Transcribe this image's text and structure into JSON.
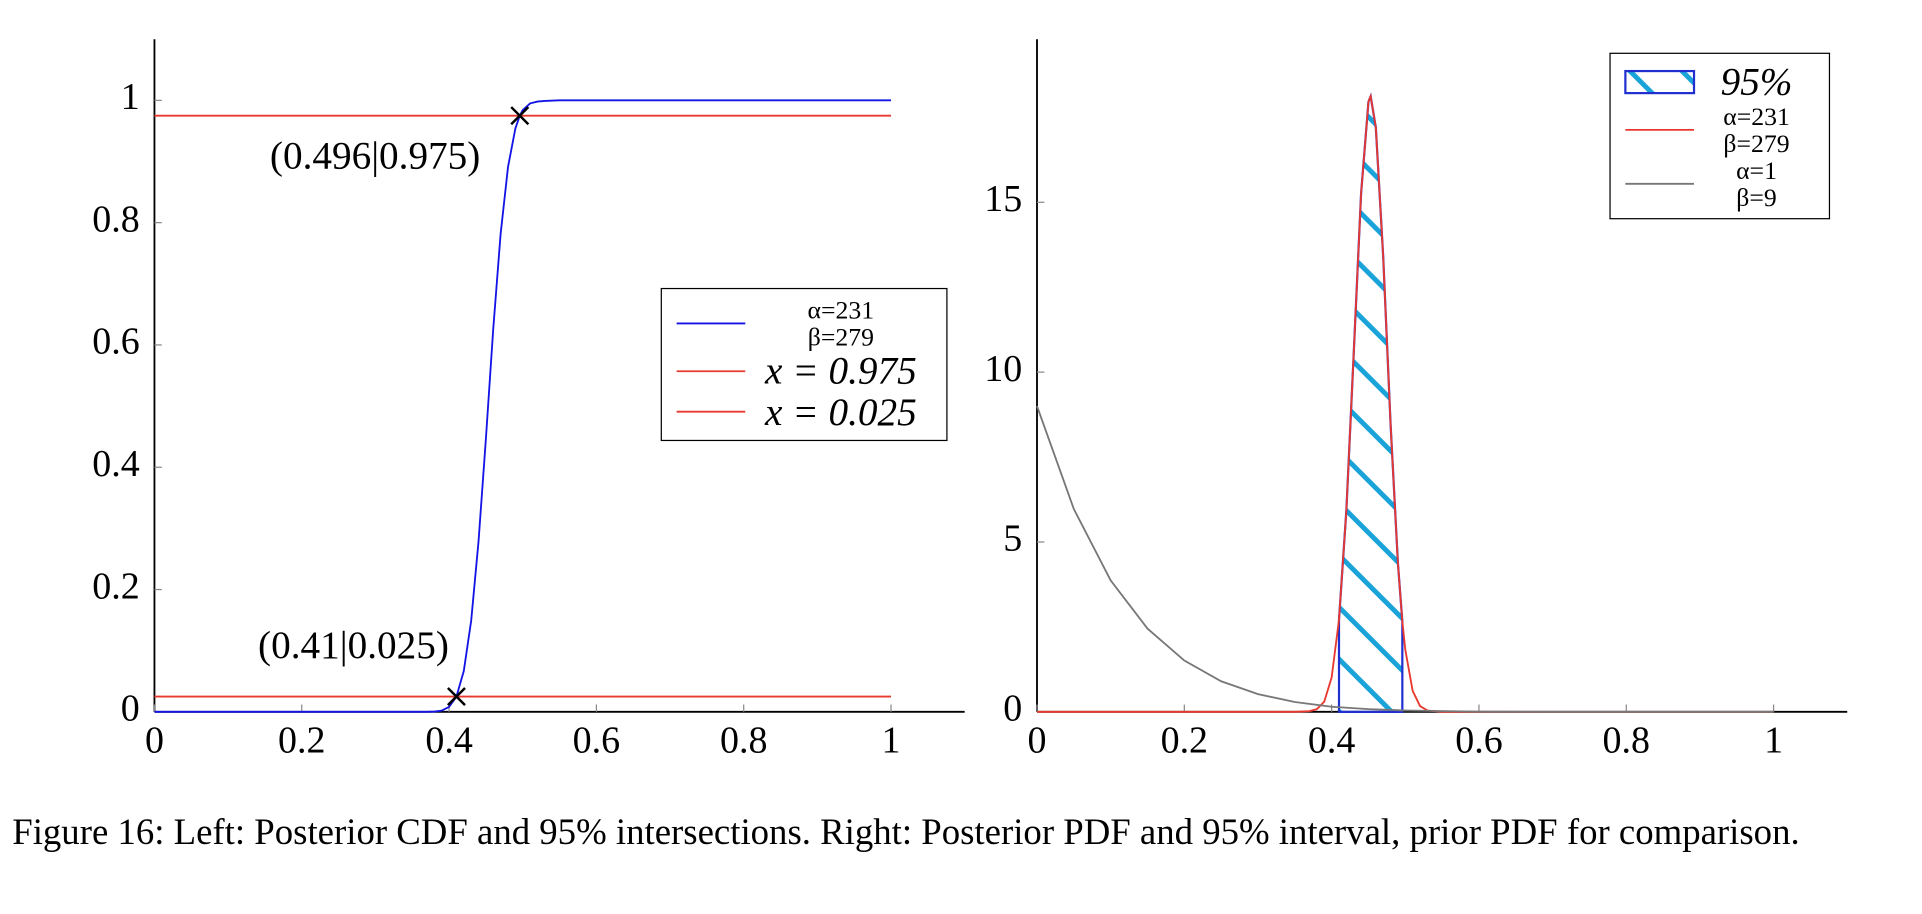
{
  "chart_data": [
    {
      "type": "line",
      "xlim": [
        0,
        1.1
      ],
      "ylim": [
        0,
        1.1
      ],
      "xticks": [
        0,
        0.2,
        0.4,
        0.6,
        0.8,
        1
      ],
      "yticks": [
        0,
        0.2,
        0.4,
        0.6,
        0.8,
        1
      ],
      "legend": "center right",
      "series": [
        {
          "name": "α=231\nβ=279",
          "color": "#1414e6",
          "x": [
            0,
            0.35,
            0.37,
            0.38,
            0.39,
            0.4,
            0.41,
            0.42,
            0.43,
            0.44,
            0.45,
            0.46,
            0.47,
            0.48,
            0.49,
            0.496,
            0.5,
            0.51,
            0.52,
            0.53,
            0.55,
            1
          ],
          "values": [
            0,
            0,
            0.0001,
            0.0005,
            0.002,
            0.008,
            0.025,
            0.067,
            0.149,
            0.279,
            0.447,
            0.627,
            0.782,
            0.891,
            0.954,
            0.975,
            0.984,
            0.995,
            0.998,
            0.999,
            1,
            1
          ]
        },
        {
          "name": "x = 0.975",
          "color": "#e8392f",
          "x": [
            0,
            1
          ],
          "values": [
            0.975,
            0.975
          ]
        },
        {
          "name": "x = 0.025",
          "color": "#e8392f",
          "x": [
            0,
            1
          ],
          "values": [
            0.025,
            0.025
          ]
        }
      ],
      "annotations": [
        {
          "text": "(0.496|0.975)",
          "x": 0.496,
          "y": 0.975
        },
        {
          "text": "(0.41|0.025)",
          "x": 0.41,
          "y": 0.025
        }
      ]
    },
    {
      "type": "line",
      "xlim": [
        0,
        1.1
      ],
      "ylim": [
        0,
        19.8
      ],
      "xticks": [
        0,
        0.2,
        0.4,
        0.6,
        0.8,
        1
      ],
      "yticks": [
        0,
        5,
        10,
        15
      ],
      "legend": "upper right",
      "series": [
        {
          "name": "95%",
          "type": "area",
          "color": "#1aa3d9",
          "x": [
            0.41,
            0.42,
            0.43,
            0.44,
            0.45,
            0.453,
            0.46,
            0.47,
            0.48,
            0.49,
            0.496
          ],
          "values": [
            2.71,
            5.93,
            10.55,
            15.26,
            17.96,
            18.12,
            17.2,
            13.4,
            8.48,
            4.37,
            2.66
          ]
        },
        {
          "name": "α=231\nβ=279",
          "color": "#e8392f",
          "x": [
            0,
            0.35,
            0.37,
            0.38,
            0.39,
            0.4,
            0.41,
            0.42,
            0.43,
            0.44,
            0.45,
            0.453,
            0.46,
            0.47,
            0.48,
            0.49,
            0.496,
            0.5,
            0.51,
            0.52,
            0.53,
            0.55,
            1
          ],
          "values": [
            0,
            0,
            0.02,
            0.08,
            0.3,
            1.01,
            2.71,
            5.93,
            10.55,
            15.26,
            17.96,
            18.12,
            17.2,
            13.4,
            8.48,
            4.37,
            2.66,
            1.83,
            0.62,
            0.17,
            0.04,
            0,
            0
          ]
        },
        {
          "name": "α=1\nβ=9",
          "color": "#777777",
          "x": [
            0,
            0.05,
            0.1,
            0.15,
            0.2,
            0.25,
            0.3,
            0.35,
            0.4,
            0.45,
            0.5,
            0.6,
            0.7,
            0.8,
            1
          ],
          "values": [
            9,
            5.97,
            3.87,
            2.45,
            1.51,
            0.9,
            0.52,
            0.29,
            0.15,
            0.08,
            0.04,
            0.006,
            0.0006,
            0,
            0
          ]
        }
      ],
      "annotations": []
    }
  ],
  "caption": "Figure 16: Left: Posterior CDF and 95% intersections. Right: Posterior PDF and 95% interval, prior PDF for comparison."
}
